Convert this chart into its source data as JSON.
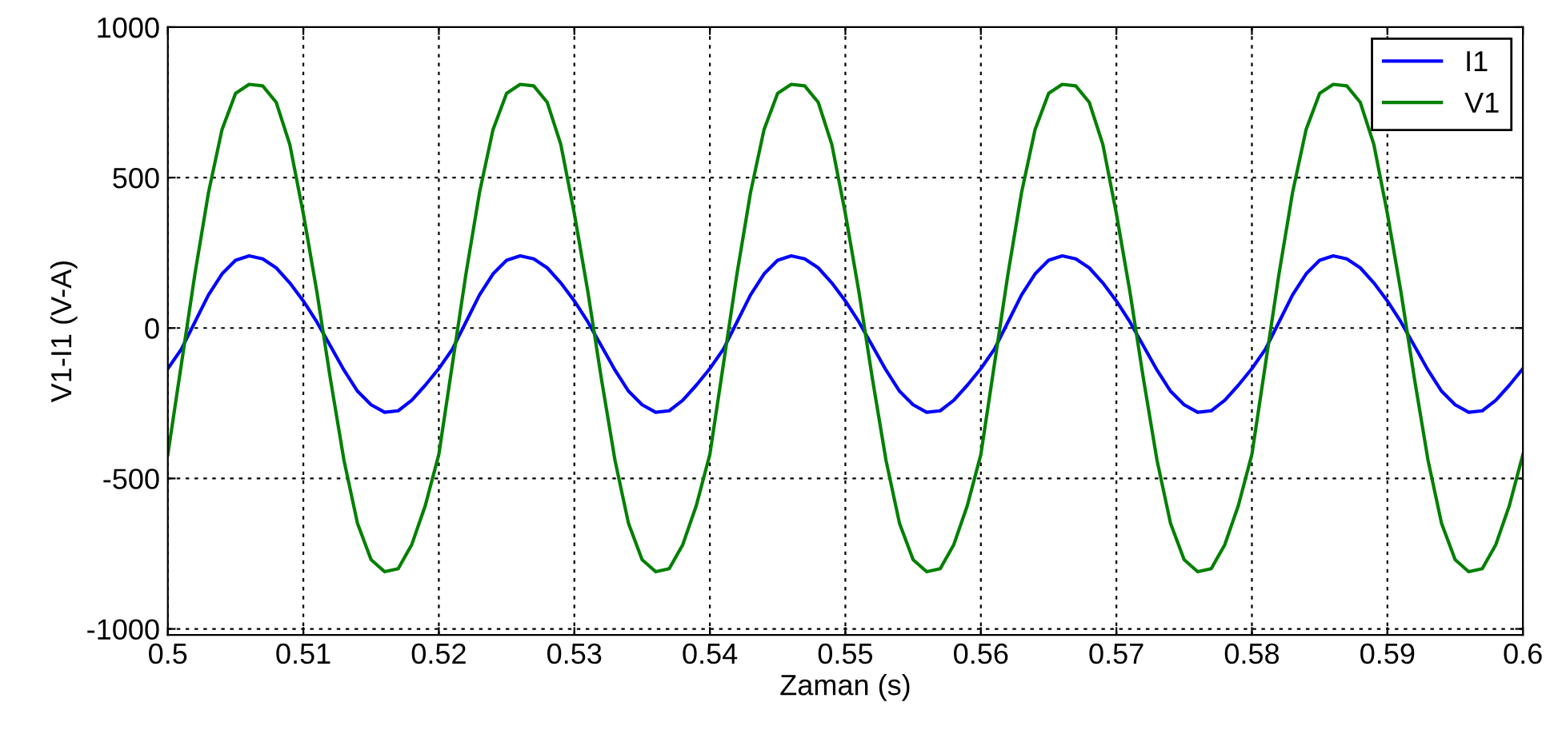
{
  "chart_data": {
    "type": "line",
    "xlabel": "Zaman (s)",
    "ylabel": "V1-I1 (V-A)",
    "x": [
      0.5,
      0.501,
      0.502,
      0.503,
      0.504,
      0.505,
      0.506,
      0.507,
      0.508,
      0.509,
      0.51,
      0.511,
      0.512,
      0.513,
      0.514,
      0.515,
      0.516,
      0.517,
      0.518,
      0.519,
      0.52,
      0.521,
      0.522,
      0.523,
      0.524,
      0.525,
      0.526,
      0.527,
      0.528,
      0.529,
      0.53,
      0.531,
      0.532,
      0.533,
      0.534,
      0.535,
      0.536,
      0.537,
      0.538,
      0.539,
      0.54,
      0.541,
      0.542,
      0.543,
      0.544,
      0.545,
      0.546,
      0.547,
      0.548,
      0.549,
      0.55,
      0.551,
      0.552,
      0.553,
      0.554,
      0.555,
      0.556,
      0.557,
      0.558,
      0.559,
      0.56,
      0.561,
      0.562,
      0.563,
      0.564,
      0.565,
      0.566,
      0.567,
      0.568,
      0.569,
      0.57,
      0.571,
      0.572,
      0.573,
      0.574,
      0.575,
      0.576,
      0.577,
      0.578,
      0.579,
      0.58,
      0.581,
      0.582,
      0.583,
      0.584,
      0.585,
      0.586,
      0.587,
      0.588,
      0.589,
      0.59,
      0.591,
      0.592,
      0.593,
      0.594,
      0.595,
      0.596,
      0.597,
      0.598,
      0.599,
      0.6
    ],
    "series": [
      {
        "name": "I1",
        "color": "#0000ff",
        "values": [
          -135,
          -70,
          20,
          110,
          180,
          225,
          240,
          230,
          200,
          150,
          90,
          20,
          -60,
          -140,
          -210,
          -255,
          -280,
          -275,
          -240,
          -190,
          -135,
          -70,
          20,
          110,
          180,
          225,
          240,
          230,
          200,
          150,
          90,
          20,
          -60,
          -140,
          -210,
          -255,
          -280,
          -275,
          -240,
          -190,
          -135,
          -70,
          20,
          110,
          180,
          225,
          240,
          230,
          200,
          150,
          90,
          20,
          -60,
          -140,
          -210,
          -255,
          -280,
          -275,
          -240,
          -190,
          -135,
          -70,
          20,
          110,
          180,
          225,
          240,
          230,
          200,
          150,
          90,
          20,
          -60,
          -140,
          -210,
          -255,
          -280,
          -275,
          -240,
          -190,
          -135,
          -70,
          20,
          110,
          180,
          225,
          240,
          230,
          200,
          150,
          90,
          20,
          -60,
          -140,
          -210,
          -255,
          -280,
          -275,
          -240,
          -190,
          -135
        ]
      },
      {
        "name": "V1",
        "color": "#008000",
        "values": [
          -420,
          -120,
          180,
          450,
          660,
          780,
          810,
          805,
          750,
          610,
          380,
          120,
          -170,
          -440,
          -650,
          -770,
          -810,
          -800,
          -720,
          -590,
          -420,
          -120,
          180,
          450,
          660,
          780,
          810,
          805,
          750,
          610,
          380,
          120,
          -170,
          -440,
          -650,
          -770,
          -810,
          -800,
          -720,
          -590,
          -420,
          -120,
          180,
          450,
          660,
          780,
          810,
          805,
          750,
          610,
          380,
          120,
          -170,
          -440,
          -650,
          -770,
          -810,
          -800,
          -720,
          -590,
          -420,
          -120,
          180,
          450,
          660,
          780,
          810,
          805,
          750,
          610,
          380,
          120,
          -170,
          -440,
          -650,
          -770,
          -810,
          -800,
          -720,
          -590,
          -420,
          -120,
          180,
          450,
          660,
          780,
          810,
          805,
          750,
          610,
          380,
          120,
          -170,
          -440,
          -650,
          -770,
          -810,
          -800,
          -720,
          -590,
          -420
        ]
      }
    ],
    "xlim": [
      0.5,
      0.6
    ],
    "xticks": [
      0.5,
      0.51,
      0.52,
      0.53,
      0.54,
      0.55,
      0.56,
      0.57,
      0.58,
      0.59,
      0.6
    ],
    "ylim": [
      -1020,
      1000
    ],
    "yticks": [
      -1000,
      -500,
      0,
      500,
      1000
    ],
    "grid": true,
    "legend": "top right",
    "line_style": "solid",
    "marker": "none"
  }
}
